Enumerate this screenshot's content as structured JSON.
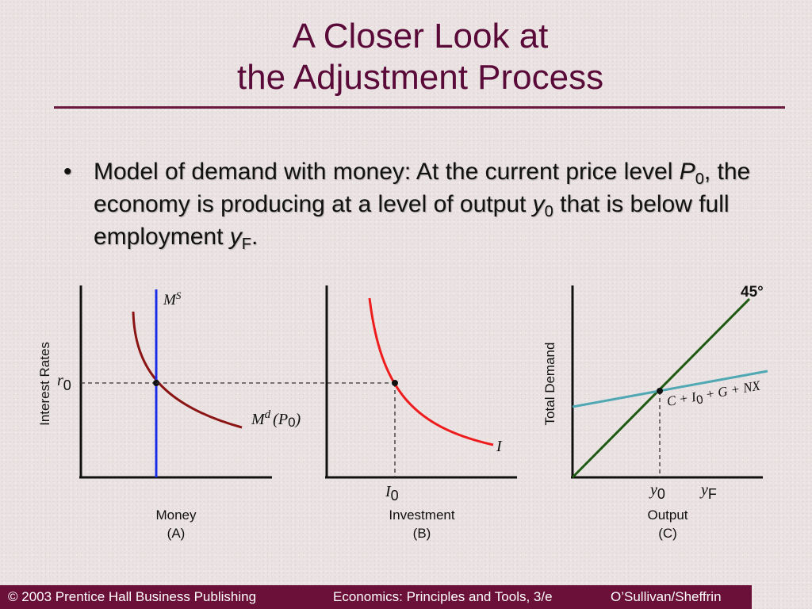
{
  "slide": {
    "title_line1": "A Closer Look at",
    "title_line2": "the Adjustment Process"
  },
  "bullet": {
    "text_a": "Model of demand with money:  At the current price level ",
    "P": "P",
    "P_sub": "0",
    "text_b": ", the economy is producing at a level of output ",
    "y": "y",
    "y_sub": "0",
    "text_c": " that is below full employment ",
    "yF": "y",
    "yF_sub": "F",
    "text_d": "."
  },
  "panel_a": {
    "y_axis_label": "Interest Rates",
    "r_label": "r",
    "r_sub": "0",
    "supply_label": "M",
    "supply_sup": "S",
    "demand_label": "M",
    "demand_sup": "d",
    "demand_arg": "(P",
    "demand_arg_sub": "0",
    "demand_close": ")",
    "x_label": "Money",
    "panel_id": "(A)"
  },
  "panel_b": {
    "curve_label": "I",
    "i_label": "I",
    "i_sub": "0",
    "x_label": "Investment",
    "panel_id": "(B)"
  },
  "panel_c": {
    "y_axis_label": "Total Demand",
    "degree_label": "45°",
    "demand_line_label": "C + I",
    "demand_line_sub": "0",
    "demand_line_rest": " + G + NX",
    "y0_label": "y",
    "y0_sub": "0",
    "yF_label": "y",
    "yF_sub": "F",
    "x_label": "Output",
    "panel_id": "(C)"
  },
  "colors": {
    "money_supply": "#1a2ee6",
    "money_demand": "#8b1414",
    "investment": "#ee1c1c",
    "forty_five": "#1f5a12",
    "total_demand": "#4fa8b4",
    "footer_bg": "#6b1038",
    "title": "#5a0a38"
  },
  "footer": {
    "copyright": "© 2003 Prentice Hall Business Publishing",
    "book": "Economics: Principles and Tools, 3/e",
    "authors": "O’Sullivan/Sheffrin"
  }
}
